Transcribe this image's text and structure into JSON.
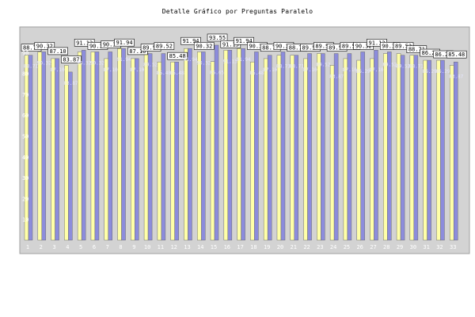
{
  "chart_data": {
    "type": "bar",
    "title": "Detalle Gráfico por Preguntas Paralelo",
    "xlabel": "",
    "ylabel": "",
    "ylim": [
      0,
      100
    ],
    "yticks": [
      10,
      20,
      30,
      40,
      50,
      60,
      70,
      80,
      90
    ],
    "grid": false,
    "categories": [
      "1",
      "2",
      "3",
      "4",
      "5",
      "6",
      "7",
      "8",
      "9",
      "10",
      "11",
      "12",
      "13",
      "14",
      "15",
      "16",
      "17",
      "18",
      "19",
      "20",
      "21",
      "22",
      "23",
      "24",
      "25",
      "26",
      "27",
      "28",
      "29",
      "30",
      "31",
      "32",
      "33"
    ],
    "series": [
      {
        "role": "yellow",
        "values": [
          88.71,
          90.32,
          87.1,
          83.87,
          90.32,
          90.32,
          87.1,
          91.94,
          87.1,
          89.52,
          85.48,
          85.48,
          91.94,
          90.32,
          85.65,
          91.13,
          91.94,
          85.48,
          87.1,
          88.71,
          88.71,
          87.1,
          89.52,
          83.87,
          87.1,
          86.29,
          87.1,
          89.52,
          89.52,
          88.71,
          86.29,
          86.29,
          83.87
        ],
        "color": "#ffffa8"
      },
      {
        "role": "blue",
        "values": [
          88.71,
          90.32,
          87.1,
          80.65,
          91.13,
          90.32,
          90.32,
          91.94,
          87.1,
          89.52,
          89.52,
          85.48,
          91.94,
          90.32,
          93.55,
          91.13,
          91.94,
          90.32,
          88.71,
          90.32,
          88.71,
          89.52,
          89.52,
          89.52,
          89.52,
          90.32,
          91.13,
          90.32,
          88.71,
          88.71,
          86.29,
          86.29,
          85.48
        ],
        "color": "#8c8cdc"
      }
    ],
    "visible_labels": [
      "88.71",
      "90.32",
      "87.10",
      "80.65",
      "83.87",
      "91.13",
      "90.32",
      "91.94",
      "87.10",
      "87.10",
      "89.52",
      "85.48",
      "91.94",
      "90.32",
      "93.55",
      "91.13",
      "91.94",
      "90.32",
      "88.71",
      "90.32",
      "88.71",
      "89.52",
      "83.87",
      "89.52",
      "89.52",
      "91.13",
      "89.52",
      "88.71"
    ],
    "colors": {
      "plot_bg": "#d3d3d3",
      "yellow": "#ffffa8",
      "blue": "#8c8cdc",
      "axis_text": "#ffffff"
    }
  }
}
